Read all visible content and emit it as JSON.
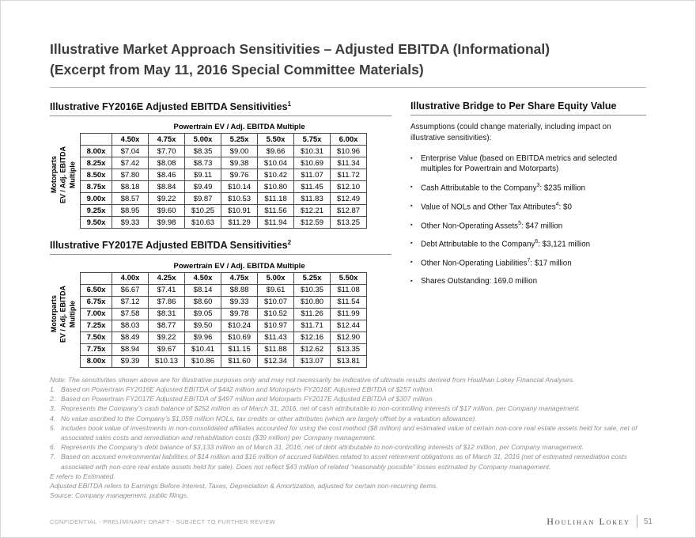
{
  "title": {
    "line1": "Illustrative Market Approach Sensitivities – Adjusted EBITDA (Informational)",
    "line2": "(Excerpt from May 11, 2016 Special Committee Materials)"
  },
  "tables": [
    {
      "section_title": "Illustrative FY2016E Adjusted EBITDA Sensitivities",
      "section_sup": "1",
      "col_axis_label": "Powertrain EV / Adj. EBITDA Multiple",
      "row_axis_label": "Motorparts\nEV / Adj. EBITDA\nMultiple",
      "columns": [
        "4.50x",
        "4.75x",
        "5.00x",
        "5.25x",
        "5.50x",
        "5.75x",
        "6.00x"
      ],
      "rows": [
        {
          "label": "8.00x",
          "values": [
            "$7.04",
            "$7.70",
            "$8.35",
            "$9.00",
            "$9.66",
            "$10.31",
            "$10.96"
          ]
        },
        {
          "label": "8.25x",
          "values": [
            "$7.42",
            "$8.08",
            "$8.73",
            "$9.38",
            "$10.04",
            "$10.69",
            "$11.34"
          ]
        },
        {
          "label": "8.50x",
          "values": [
            "$7.80",
            "$8.46",
            "$9.11",
            "$9.76",
            "$10.42",
            "$11.07",
            "$11.72"
          ]
        },
        {
          "label": "8.75x",
          "values": [
            "$8.18",
            "$8.84",
            "$9.49",
            "$10.14",
            "$10.80",
            "$11.45",
            "$12.10"
          ]
        },
        {
          "label": "9.00x",
          "values": [
            "$8.57",
            "$9.22",
            "$9.87",
            "$10.53",
            "$11.18",
            "$11.83",
            "$12.49"
          ]
        },
        {
          "label": "9.25x",
          "values": [
            "$8.95",
            "$9.60",
            "$10.25",
            "$10.91",
            "$11.56",
            "$12.21",
            "$12.87"
          ]
        },
        {
          "label": "9.50x",
          "values": [
            "$9.33",
            "$9.98",
            "$10.63",
            "$11.29",
            "$11.94",
            "$12.59",
            "$13.25"
          ]
        }
      ]
    },
    {
      "section_title": "Illustrative FY2017E Adjusted EBITDA Sensitivities",
      "section_sup": "2",
      "col_axis_label": "Powertrain EV / Adj. EBITDA Multiple",
      "row_axis_label": "Motorparts\nEV / Adj. EBITDA\nMultiple",
      "columns": [
        "4.00x",
        "4.25x",
        "4.50x",
        "4.75x",
        "5.00x",
        "5.25x",
        "5.50x"
      ],
      "rows": [
        {
          "label": "6.50x",
          "values": [
            "$6.67",
            "$7.41",
            "$8.14",
            "$8.88",
            "$9.61",
            "$10.35",
            "$11.08"
          ]
        },
        {
          "label": "6.75x",
          "values": [
            "$7.12",
            "$7.86",
            "$8.60",
            "$9.33",
            "$10.07",
            "$10.80",
            "$11.54"
          ]
        },
        {
          "label": "7.00x",
          "values": [
            "$7.58",
            "$8.31",
            "$9.05",
            "$9.78",
            "$10.52",
            "$11.26",
            "$11.99"
          ]
        },
        {
          "label": "7.25x",
          "values": [
            "$8.03",
            "$8.77",
            "$9.50",
            "$10.24",
            "$10.97",
            "$11.71",
            "$12.44"
          ]
        },
        {
          "label": "7.50x",
          "values": [
            "$8.49",
            "$9.22",
            "$9.96",
            "$10.69",
            "$11.43",
            "$12.16",
            "$12.90"
          ]
        },
        {
          "label": "7.75x",
          "values": [
            "$8.94",
            "$9.67",
            "$10.41",
            "$11.15",
            "$11.88",
            "$12.62",
            "$13.35"
          ]
        },
        {
          "label": "8.00x",
          "values": [
            "$9.39",
            "$10.13",
            "$10.86",
            "$11.60",
            "$12.34",
            "$13.07",
            "$13.81"
          ]
        }
      ]
    }
  ],
  "bridge": {
    "title": "Illustrative Bridge to Per Share Equity Value",
    "intro": "Assumptions (could change materially, including impact on illustrative sensitivities):",
    "bullet_char": "▪",
    "bullets": [
      {
        "pre": "Enterprise Value (based on EBITDA metrics and selected multiples for Powertrain and Motorparts)",
        "sup": "",
        "post": ""
      },
      {
        "pre": "Cash Attributable to the Company",
        "sup": "3",
        "post": ": $235 million"
      },
      {
        "pre": "Value of NOLs and Other Tax Attributes",
        "sup": "4",
        "post": ": $0"
      },
      {
        "pre": "Other Non-Operating Assets",
        "sup": "5",
        "post": ": $47 million"
      },
      {
        "pre": "Debt Attributable to the Company",
        "sup": "6",
        "post": ": $3,121 million"
      },
      {
        "pre": "Other Non-Operating Liabilities",
        "sup": "7",
        "post": ": $17 million"
      },
      {
        "pre": "Shares Outstanding: 169.0 million",
        "sup": "",
        "post": ""
      }
    ]
  },
  "footnotes": [
    {
      "num": "",
      "text": "Note: The sensitivities shown above are for illustrative purposes only and may not necessarily be indicative of ultimate results derived from Houlihan Lokey Financial Analyses."
    },
    {
      "num": "1.",
      "text": "Based on Powertrain FY2016E Adjusted EBITDA of $442 million and Motorparts FY2016E Adjusted EBITDA of $257 million."
    },
    {
      "num": "2.",
      "text": "Based on Powertrain FY2017E Adjusted EBITDA of $497 million and Motorparts FY2017E Adjusted EBITDA of $307 million."
    },
    {
      "num": "3.",
      "text": "Represents the Company’s cash balance of $252 million as of March 31, 2016, net of cash attributable to non-controlling interests of $17 million, per Company management."
    },
    {
      "num": "4.",
      "text": "No value ascribed to the Company’s $1,059 million NOLs, tax credits or other attributes (which are largely offset by a valuation allowance)."
    },
    {
      "num": "5.",
      "text": "Includes book value of investments in non-consolidated affiliates accounted for using the cost method ($8 million) and estimated value of certain non-core real estate assets held for sale, net of associated sales costs and remediation and rehabilitation costs ($39 million) per Company management."
    },
    {
      "num": "6.",
      "text": "Represents the Company’s debt balance of $3,133 million as of March 31, 2016, net of debt attributable to non-controlling interests of $12 million, per Company management."
    },
    {
      "num": "7.",
      "text": "Based on accrued environmental liabilities of $14 million and $16 million of accrued liabilities related to asset retirement obligations as of March 31, 2016 (net of estimated remediation costs associated with non-core real estate assets held for sale). Does not reflect $43 million of related “reasonably possible” losses estimated by Company management."
    },
    {
      "num": "",
      "text": "E refers to Estimated."
    },
    {
      "num": "",
      "text": "Adjusted EBITDA refers to Earnings Before Interest, Taxes, Depreciation & Amortization, adjusted for certain non-recurring items."
    },
    {
      "num": "",
      "text": "Source: Company management, public filings."
    }
  ],
  "footer": {
    "confidential": "CONFIDENTIAL - PRELIMINARY DRAFT - SUBJECT TO FURTHER REVIEW",
    "brand": "Houlihan Lokey",
    "page": "51"
  }
}
